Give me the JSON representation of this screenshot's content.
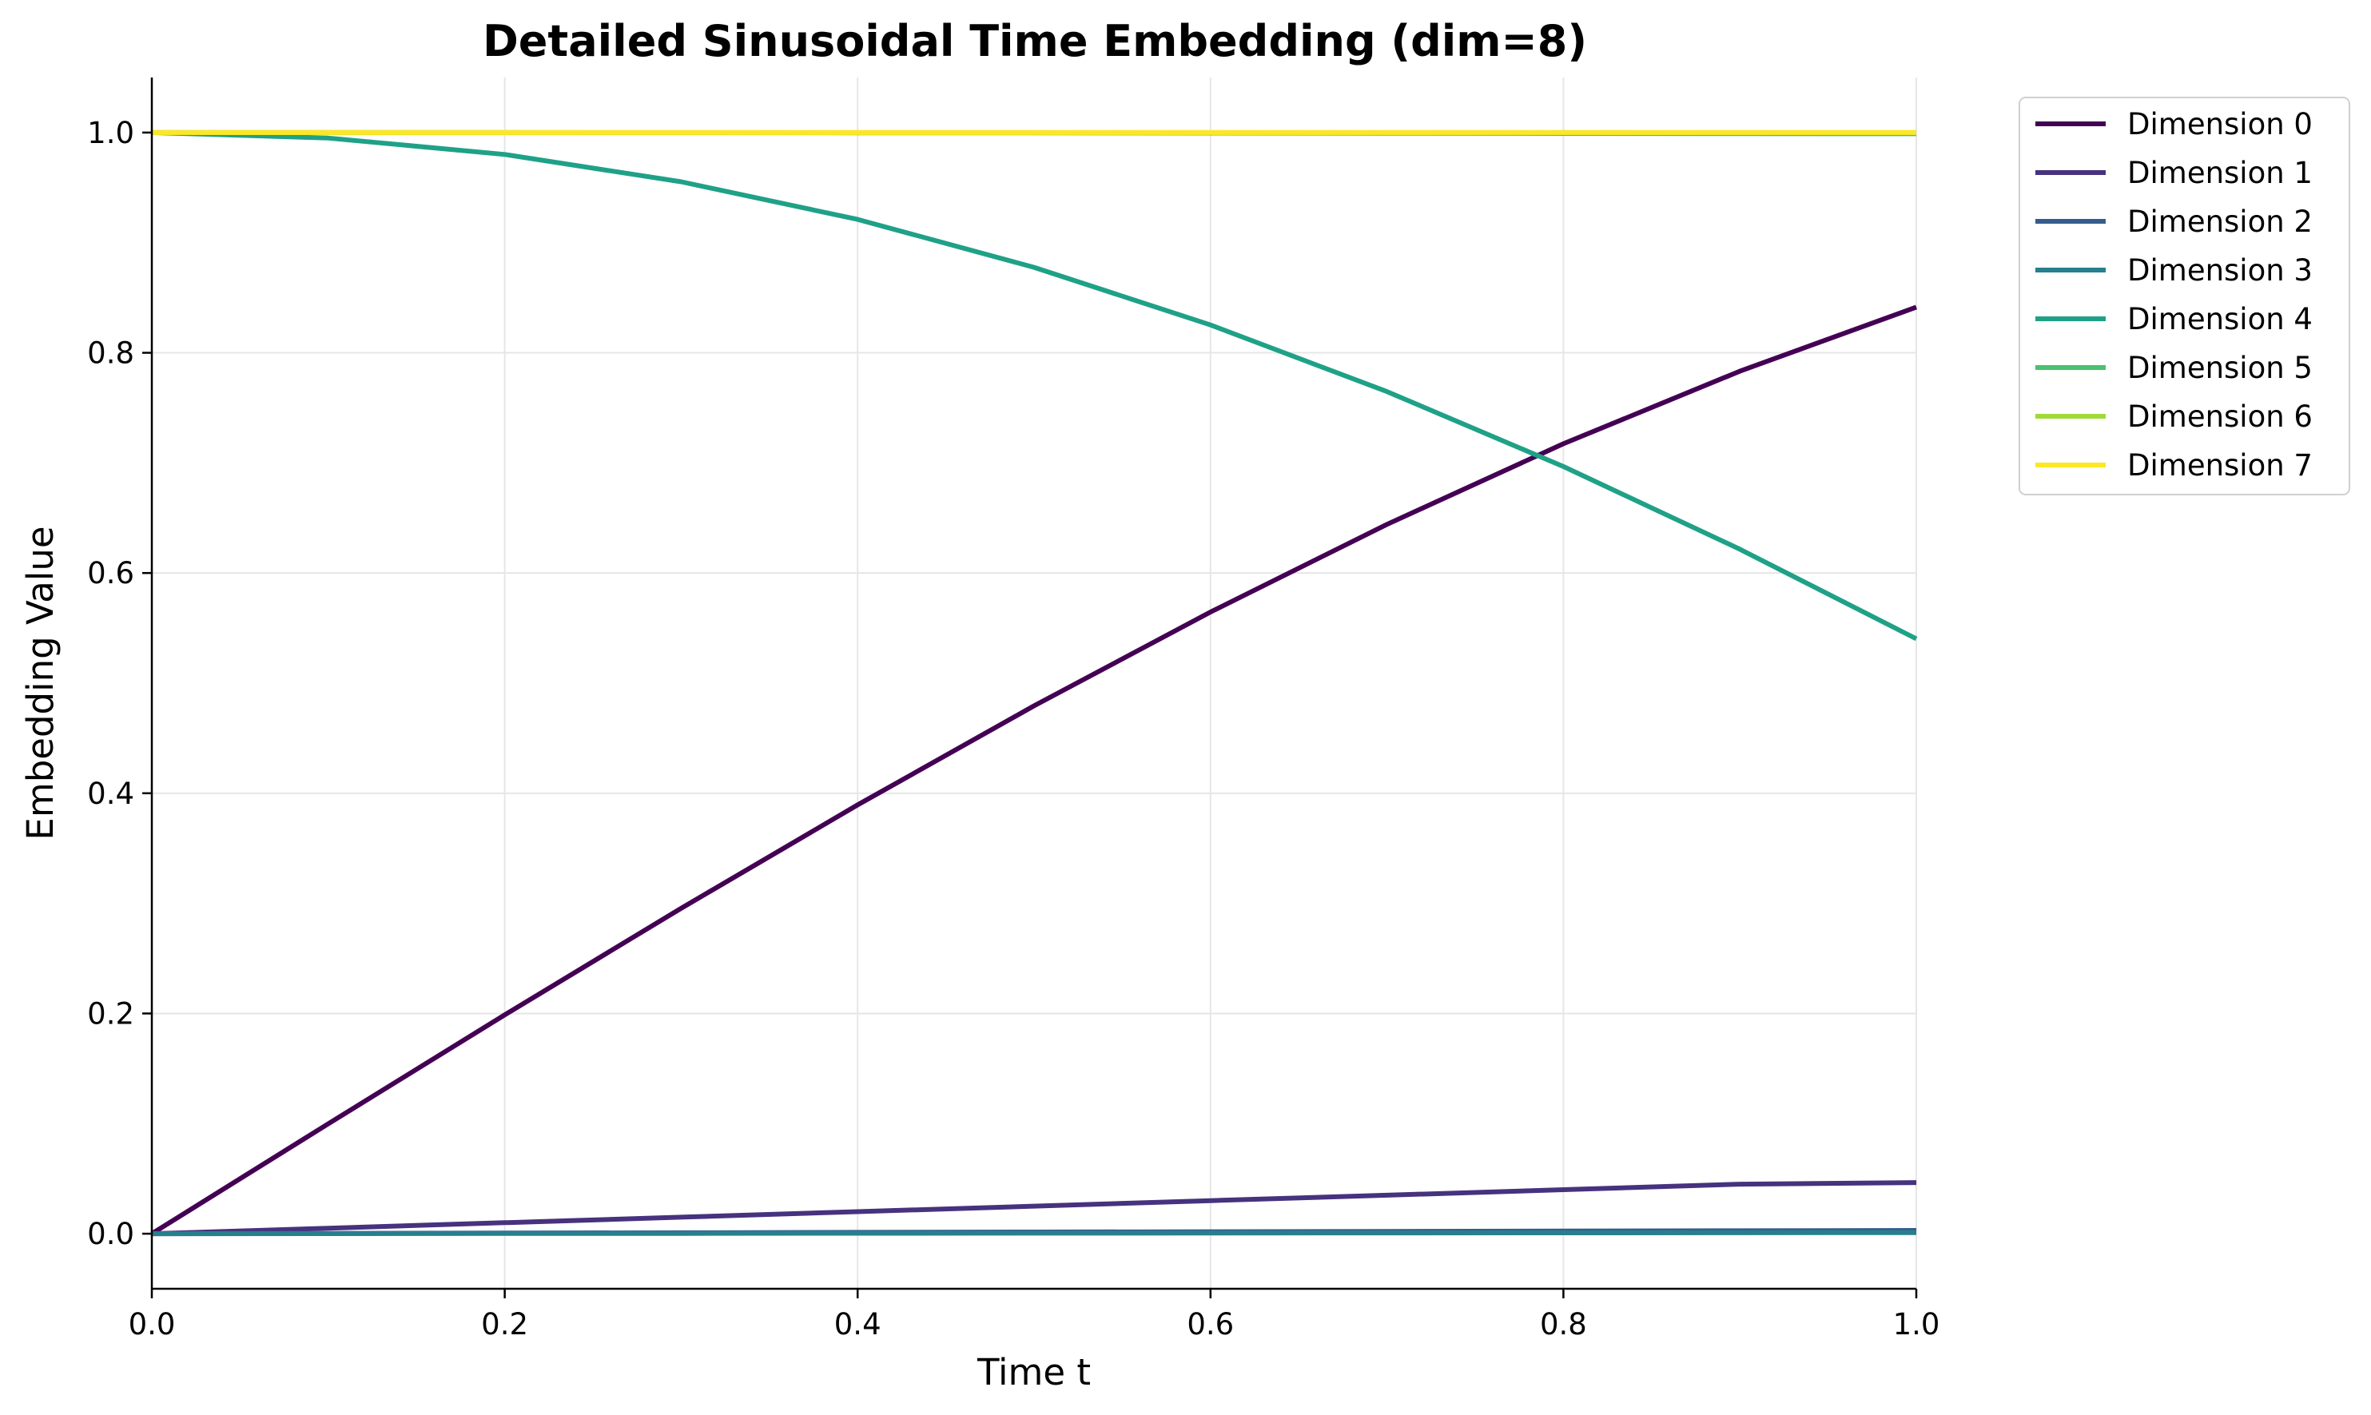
{
  "chart_data": {
    "type": "line",
    "title": "Detailed Sinusoidal Time Embedding (dim=8)",
    "xlabel": "Time t",
    "ylabel": "Embedding Value",
    "xlim": [
      0.0,
      1.0
    ],
    "ylim": [
      -0.05,
      1.05
    ],
    "xticks": [
      "0.0",
      "0.2",
      "0.4",
      "0.6",
      "0.8",
      "1.0"
    ],
    "yticks": [
      "0.0",
      "0.2",
      "0.4",
      "0.6",
      "0.8",
      "1.0"
    ],
    "grid": true,
    "legend_position": "outside-top-right",
    "x": [
      0.0,
      0.1,
      0.2,
      0.3,
      0.4,
      0.5,
      0.6,
      0.7,
      0.8,
      0.9,
      1.0
    ],
    "series": [
      {
        "name": "Dimension 0",
        "color": "#440154",
        "values": [
          0.0,
          0.0998,
          0.1987,
          0.2955,
          0.3894,
          0.4794,
          0.5646,
          0.6442,
          0.7174,
          0.7833,
          0.8415
        ]
      },
      {
        "name": "Dimension 1",
        "color": "#46327e",
        "values": [
          0.0,
          0.005,
          0.01,
          0.015,
          0.02,
          0.025,
          0.03,
          0.035,
          0.04,
          0.045,
          0.0464
        ]
      },
      {
        "name": "Dimension 2",
        "color": "#365c8d",
        "values": [
          0.0,
          0.0003,
          0.0006,
          0.0009,
          0.0012,
          0.0015,
          0.0018,
          0.0021,
          0.0024,
          0.0027,
          0.003
        ]
      },
      {
        "name": "Dimension 3",
        "color": "#277f8e",
        "values": [
          0.0,
          0.0001,
          0.0002,
          0.0003,
          0.0004,
          0.0005,
          0.0006,
          0.0007,
          0.0008,
          0.0009,
          0.001
        ]
      },
      {
        "name": "Dimension 4",
        "color": "#1fa187",
        "values": [
          1.0,
          0.995,
          0.9801,
          0.9553,
          0.9211,
          0.8776,
          0.8253,
          0.7648,
          0.6967,
          0.6216,
          0.5403
        ]
      },
      {
        "name": "Dimension 5",
        "color": "#4ac16d",
        "values": [
          1.0,
          1.0,
          1.0,
          0.9999,
          0.9998,
          0.9997,
          0.9996,
          0.9994,
          0.9992,
          0.999,
          0.9989
        ]
      },
      {
        "name": "Dimension 6",
        "color": "#a0da39",
        "values": [
          1.0,
          1.0,
          1.0,
          1.0,
          1.0,
          1.0,
          1.0,
          1.0,
          1.0,
          1.0,
          1.0
        ]
      },
      {
        "name": "Dimension 7",
        "color": "#fde725",
        "values": [
          1.0,
          1.0,
          1.0,
          1.0,
          1.0,
          1.0,
          1.0,
          1.0,
          1.0,
          1.0,
          1.0
        ]
      }
    ]
  }
}
